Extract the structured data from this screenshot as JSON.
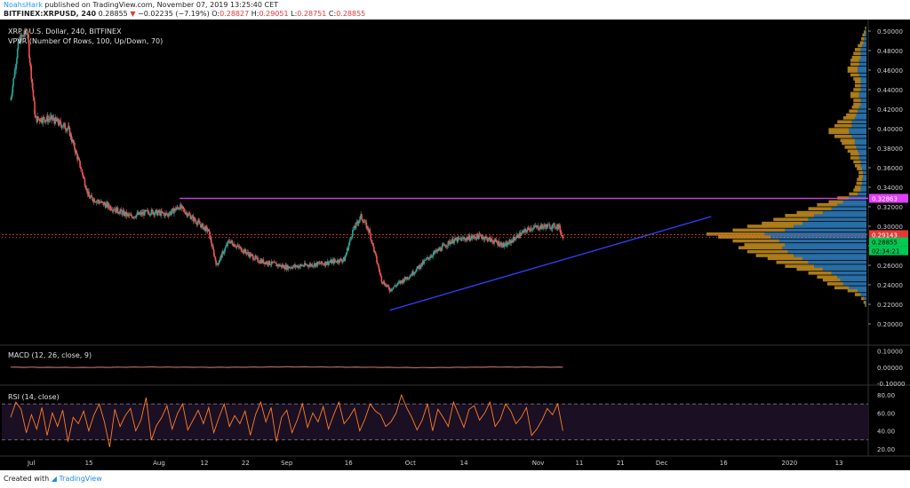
{
  "header": {
    "author": "NoahsHark",
    "published": "published on TradingView.com, November 07, 2019 13:25:40 CET",
    "symbol": "BITFINEX:XRPUSD, 240",
    "last": "0.28855",
    "change_arrow": "▼",
    "change": "−0.02235 (−7.19%)",
    "ohlc": {
      "o_label": "O:",
      "o": "0.28827",
      "h_label": "H:",
      "h": "0.29051",
      "l_label": "L:",
      "l": "0.28751",
      "c_label": "C:",
      "c": "0.28855"
    }
  },
  "legend": {
    "title": "XRP / U.S. Dollar, 240, BITFINEX",
    "vpvr": "VPVR (Number Of Rows, 100, Up/Down, 70)",
    "macd": "MACD (12, 26, close, 9)",
    "rsi": "RSI (14, close)"
  },
  "footer": {
    "created": "Created with",
    "brand": "TradingView"
  },
  "colors": {
    "background": "#000000",
    "up": "#26a69a",
    "down": "#ef5350",
    "vp_up": "#2f7fbf",
    "vp_down": "#c8911e",
    "resistance": "#e040fb",
    "trendline": "#3040ff",
    "price_line": "#e53935",
    "rsi_line": "#ff7f24",
    "rsi_band": "#1b0f24"
  },
  "chart_data": [
    {
      "type": "candlestick",
      "title": "XRP / U.S. Dollar, 240, BITFINEX",
      "ylim": [
        0.18,
        0.51
      ],
      "y_ticks": [
        "0.50000",
        "0.48000",
        "0.46000",
        "0.44000",
        "0.42000",
        "0.40000",
        "0.38000",
        "0.36000",
        "0.34000",
        "0.32000",
        "0.30000",
        "0.28000",
        "0.26000",
        "0.24000",
        "0.22000",
        "0.20000"
      ],
      "x_ticks": [
        "Jul",
        "15",
        "Aug",
        "12",
        "22",
        "Sep",
        "16",
        "Oct",
        "14",
        "Nov",
        "11",
        "21",
        "Dec",
        "16",
        "2020",
        "13"
      ],
      "price_path": [
        [
          "2019-06-26",
          0.43
        ],
        [
          "2019-06-28",
          0.49
        ],
        [
          "2019-06-30",
          0.5
        ],
        [
          "2019-07-02",
          0.41
        ],
        [
          "2019-07-06",
          0.41
        ],
        [
          "2019-07-10",
          0.4
        ],
        [
          "2019-07-13",
          0.36
        ],
        [
          "2019-07-15",
          0.33
        ],
        [
          "2019-07-20",
          0.32
        ],
        [
          "2019-07-25",
          0.31
        ],
        [
          "2019-07-30",
          0.315
        ],
        [
          "2019-08-03",
          0.312
        ],
        [
          "2019-08-06",
          0.32
        ],
        [
          "2019-08-10",
          0.305
        ],
        [
          "2019-08-13",
          0.295
        ],
        [
          "2019-08-15",
          0.26
        ],
        [
          "2019-08-18",
          0.285
        ],
        [
          "2019-08-25",
          0.265
        ],
        [
          "2019-09-01",
          0.258
        ],
        [
          "2019-09-10",
          0.262
        ],
        [
          "2019-09-15",
          0.266
        ],
        [
          "2019-09-17",
          0.295
        ],
        [
          "2019-09-19",
          0.31
        ],
        [
          "2019-09-21",
          0.295
        ],
        [
          "2019-09-24",
          0.245
        ],
        [
          "2019-09-26",
          0.235
        ],
        [
          "2019-10-01",
          0.25
        ],
        [
          "2019-10-06",
          0.27
        ],
        [
          "2019-10-11",
          0.285
        ],
        [
          "2019-10-18",
          0.29
        ],
        [
          "2019-10-24",
          0.28
        ],
        [
          "2019-10-27",
          0.29
        ],
        [
          "2019-10-30",
          0.298
        ],
        [
          "2019-11-03",
          0.3
        ],
        [
          "2019-11-06",
          0.3
        ],
        [
          "2019-11-07",
          0.2886
        ]
      ],
      "annotations": {
        "resistance": {
          "price": 0.32863,
          "from": "2019-08-06",
          "label": "0.32863"
        },
        "trendline": {
          "from": [
            "2019-09-26",
            0.214
          ],
          "to": [
            "2019-12-13",
            0.31
          ]
        },
        "prev_close": {
          "price": 0.29143,
          "label": "0.29143"
        },
        "last_price": {
          "price": 0.28855,
          "label": "0.28855",
          "countdown": "02:34:21"
        }
      },
      "volume_profile": {
        "rows": [
          [
            0.219,
            0.003,
            0.002
          ],
          [
            0.222,
            0.006,
            0.004
          ],
          [
            0.226,
            0.01,
            0.008
          ],
          [
            0.23,
            0.02,
            0.02
          ],
          [
            0.234,
            0.035,
            0.03
          ],
          [
            0.237,
            0.05,
            0.06
          ],
          [
            0.241,
            0.055,
            0.08
          ],
          [
            0.245,
            0.06,
            0.09
          ],
          [
            0.248,
            0.07,
            0.1
          ],
          [
            0.252,
            0.08,
            0.12
          ],
          [
            0.256,
            0.09,
            0.15
          ],
          [
            0.259,
            0.1,
            0.18
          ],
          [
            0.263,
            0.11,
            0.2
          ],
          [
            0.267,
            0.12,
            0.22
          ],
          [
            0.27,
            0.13,
            0.25
          ],
          [
            0.274,
            0.14,
            0.27
          ],
          [
            0.278,
            0.15,
            0.29
          ],
          [
            0.281,
            0.14,
            0.28
          ],
          [
            0.285,
            0.16,
            0.3
          ],
          [
            0.289,
            0.18,
            0.33
          ],
          [
            0.292,
            0.2,
            0.35
          ],
          [
            0.296,
            0.18,
            0.28
          ],
          [
            0.3,
            0.16,
            0.25
          ],
          [
            0.303,
            0.14,
            0.22
          ],
          [
            0.307,
            0.12,
            0.2
          ],
          [
            0.311,
            0.1,
            0.18
          ],
          [
            0.314,
            0.09,
            0.15
          ],
          [
            0.318,
            0.08,
            0.12
          ],
          [
            0.322,
            0.07,
            0.1
          ],
          [
            0.325,
            0.05,
            0.08
          ],
          [
            0.329,
            0.04,
            0.06
          ],
          [
            0.333,
            0.03,
            0.03
          ],
          [
            0.337,
            0.025,
            0.02
          ],
          [
            0.34,
            0.02,
            0.02
          ],
          [
            0.344,
            0.02,
            0.015
          ],
          [
            0.348,
            0.018,
            0.015
          ],
          [
            0.351,
            0.015,
            0.012
          ],
          [
            0.355,
            0.015,
            0.012
          ],
          [
            0.359,
            0.018,
            0.015
          ],
          [
            0.362,
            0.02,
            0.02
          ],
          [
            0.366,
            0.025,
            0.02
          ],
          [
            0.37,
            0.03,
            0.025
          ],
          [
            0.374,
            0.03,
            0.025
          ],
          [
            0.377,
            0.035,
            0.03
          ],
          [
            0.381,
            0.04,
            0.035
          ],
          [
            0.385,
            0.045,
            0.04
          ],
          [
            0.388,
            0.05,
            0.04
          ],
          [
            0.392,
            0.06,
            0.05
          ],
          [
            0.396,
            0.07,
            0.06
          ],
          [
            0.399,
            0.07,
            0.06
          ],
          [
            0.403,
            0.06,
            0.05
          ],
          [
            0.407,
            0.05,
            0.05
          ],
          [
            0.411,
            0.04,
            0.04
          ],
          [
            0.414,
            0.035,
            0.035
          ],
          [
            0.418,
            0.03,
            0.03
          ],
          [
            0.422,
            0.025,
            0.025
          ],
          [
            0.425,
            0.025,
            0.02
          ],
          [
            0.429,
            0.025,
            0.02
          ],
          [
            0.433,
            0.03,
            0.025
          ],
          [
            0.436,
            0.03,
            0.025
          ],
          [
            0.44,
            0.025,
            0.02
          ],
          [
            0.444,
            0.02,
            0.02
          ],
          [
            0.448,
            0.02,
            0.02
          ],
          [
            0.451,
            0.025,
            0.02
          ],
          [
            0.455,
            0.03,
            0.025
          ],
          [
            0.459,
            0.035,
            0.03
          ],
          [
            0.462,
            0.035,
            0.03
          ],
          [
            0.466,
            0.03,
            0.025
          ],
          [
            0.47,
            0.03,
            0.025
          ],
          [
            0.473,
            0.03,
            0.02
          ],
          [
            0.477,
            0.025,
            0.02
          ],
          [
            0.481,
            0.02,
            0.02
          ],
          [
            0.485,
            0.015,
            0.015
          ],
          [
            0.488,
            0.012,
            0.01
          ],
          [
            0.492,
            0.01,
            0.008
          ],
          [
            0.496,
            0.008,
            0.006
          ],
          [
            0.499,
            0.005,
            0.004
          ],
          [
            0.503,
            0.003,
            0.002
          ]
        ]
      }
    },
    {
      "type": "line",
      "title": "MACD (12, 26, close, 9)",
      "ylim": [
        -0.1,
        0.12
      ],
      "y_ticks": [
        "0.10000",
        "0.00000",
        "-0.10000"
      ],
      "series": [
        {
          "values": [
            0.0,
            -0.002,
            0.001,
            -0.001,
            0.002,
            0.0,
            -0.003,
            0.001,
            0.0
          ]
        }
      ]
    },
    {
      "type": "line",
      "title": "RSI (14, close)",
      "ylim": [
        12,
        88
      ],
      "y_ticks": [
        "80.00",
        "60.00",
        "40.00",
        "20.00"
      ],
      "bands": [
        70,
        30
      ],
      "series": [
        {
          "values": [
            55,
            72,
            64,
            38,
            58,
            42,
            66,
            35,
            60,
            45,
            63,
            28,
            55,
            48,
            62,
            40,
            58,
            70,
            50,
            22,
            64,
            45,
            57,
            65,
            40,
            52,
            77,
            30,
            46,
            55,
            68,
            42,
            59,
            70,
            41,
            52,
            63,
            48,
            66,
            38,
            55,
            70,
            45,
            57,
            48,
            62,
            35,
            58,
            72,
            50,
            66,
            28,
            55,
            63,
            38,
            52,
            70,
            44,
            60,
            50,
            67,
            42,
            58,
            72,
            48,
            55,
            65,
            40,
            53,
            70,
            62,
            58,
            45,
            50,
            60,
            80,
            66,
            55,
            41,
            52,
            70,
            40,
            64,
            55,
            45,
            72,
            58,
            44,
            64,
            68,
            52,
            60,
            72,
            45,
            53,
            70,
            62,
            48,
            55,
            66,
            35,
            42,
            52,
            65,
            58,
            70,
            40
          ]
        }
      ]
    }
  ]
}
